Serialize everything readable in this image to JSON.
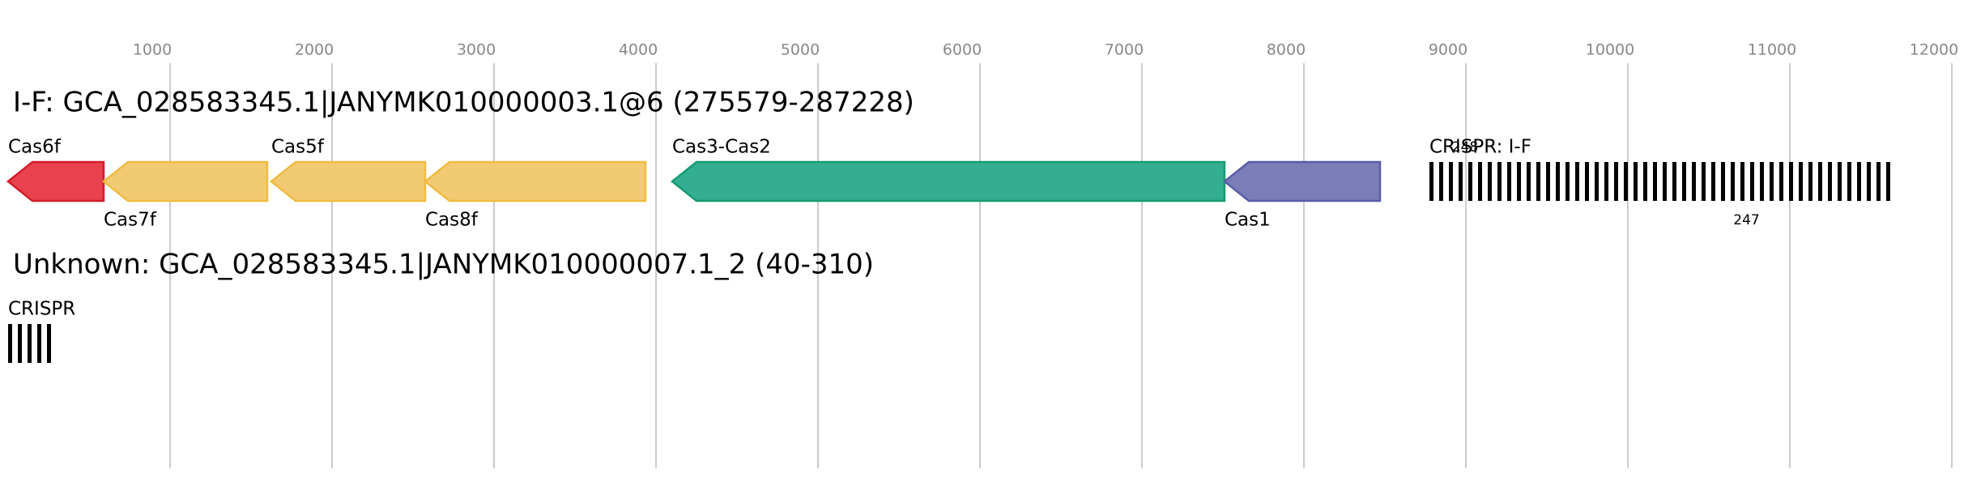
{
  "axis": {
    "ticks": [
      1000,
      2000,
      3000,
      4000,
      5000,
      6000,
      7000,
      8000,
      9000,
      10000,
      11000,
      12000
    ]
  },
  "tracks": [
    {
      "title": "I-F: GCA_028583345.1|JANYMK010000003.1@6 (275579-287228)",
      "genes": [
        {
          "name": "Cas6f",
          "start": 0,
          "end": 590,
          "color": "#e8424f",
          "stroke": "#d31c2b"
        },
        {
          "name": "Cas7f",
          "start": 590,
          "end": 1600,
          "color": "#f2ca74",
          "stroke": "#f0bb40"
        },
        {
          "name": "Cas5f",
          "start": 1625,
          "end": 2575,
          "color": "#f2ca74",
          "stroke": "#f0bb40"
        },
        {
          "name": "Cas8f",
          "start": 2575,
          "end": 3935,
          "color": "#f2ca74",
          "stroke": "#f0bb40"
        },
        {
          "name": "Cas3-Cas2",
          "start": 4100,
          "end": 7510,
          "color": "#33ae91",
          "stroke": "#169a72"
        },
        {
          "name": "Cas1",
          "start": 7510,
          "end": 8470,
          "color": "#7b7db8",
          "stroke": "#5a5ca8"
        }
      ],
      "crispr": {
        "name": "CRISPR: I-F",
        "start": 8775,
        "end": 11650,
        "top_note": 248,
        "bottom_note": 247
      }
    },
    {
      "title": "Unknown: GCA_028583345.1|JANYMK010000007.1_2 (40-310)",
      "genes": [],
      "crispr": {
        "name": "CRISPR",
        "start": 0,
        "end": 265
      }
    }
  ]
}
